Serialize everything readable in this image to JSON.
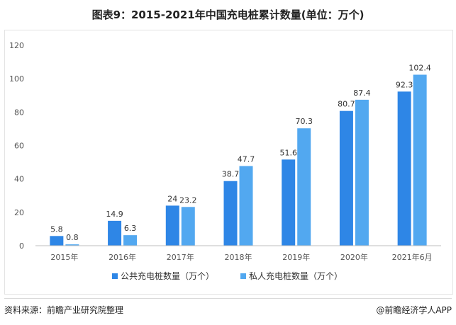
{
  "header": {
    "title": "图表9：2015-2021年中国充电桩累计数量(单位：万个)"
  },
  "chart_data": {
    "type": "bar",
    "title": "图表9：2015-2021年中国充电桩累计数量(单位：万个)",
    "categories": [
      "2015年",
      "2016年",
      "2017年",
      "2018年",
      "2019年",
      "2020年",
      "2021年6月"
    ],
    "series": [
      {
        "name": "公共充电桩数量（万个）",
        "values": [
          5.8,
          14.9,
          24,
          38.7,
          51.6,
          80.7,
          92.3
        ],
        "color": "#2e86e6"
      },
      {
        "name": "私人充电桩数量（万个）",
        "values": [
          0.8,
          6.3,
          23.2,
          47.7,
          70.3,
          87.4,
          102.4
        ],
        "color": "#52a8f0"
      }
    ],
    "yticks": [
      0,
      20,
      40,
      60,
      80,
      100,
      120
    ],
    "ylim": [
      0,
      120
    ],
    "grid": false,
    "legend_position": "bottom"
  },
  "footer": {
    "source": "资料来源：前瞻产业研究院整理",
    "credit": "@前瞻经济学人APP"
  }
}
